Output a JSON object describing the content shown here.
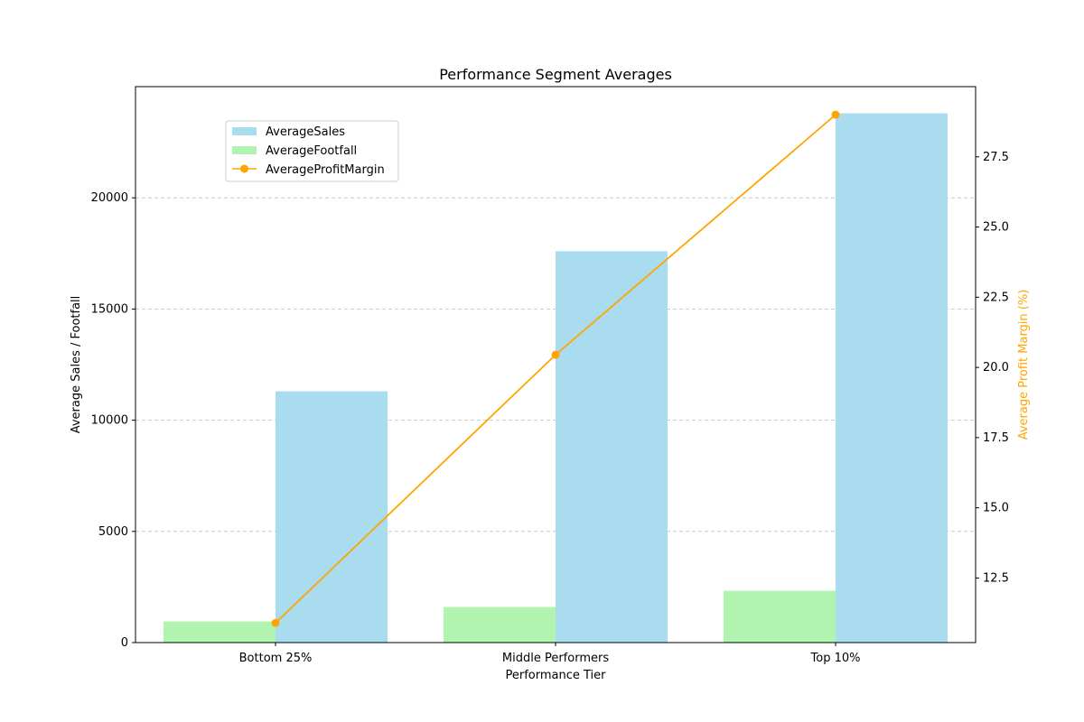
{
  "chart_data": {
    "type": "bar",
    "title": "Performance Segment Averages",
    "xlabel": "Performance Tier",
    "ylabel": "Average Sales / Footfall",
    "y2label": "Average Profit Margin (%)",
    "categories": [
      "Bottom 25%",
      "Middle Performers",
      "Top 10%"
    ],
    "ylim": [
      0,
      25000
    ],
    "yticks": [
      0,
      5000,
      10000,
      15000,
      20000
    ],
    "y2lim": [
      10.2,
      30.0
    ],
    "y2ticks": [
      12.5,
      15.0,
      17.5,
      20.0,
      22.5,
      25.0,
      27.5
    ],
    "grid": "horizontal-dashed",
    "legend_position": "upper-left",
    "series": [
      {
        "name": "AverageSales",
        "type": "bar",
        "axis": "left",
        "color": "#a9dcee",
        "values": [
          11300,
          17600,
          23800
        ]
      },
      {
        "name": "AverageFootfall",
        "type": "bar",
        "axis": "left",
        "color": "#b0f4b0",
        "values": [
          950,
          1600,
          2330
        ]
      },
      {
        "name": "AverageProfitMargin",
        "type": "line",
        "axis": "right",
        "color": "#ffa500",
        "values": [
          10.9,
          20.45,
          29.0
        ]
      }
    ]
  }
}
